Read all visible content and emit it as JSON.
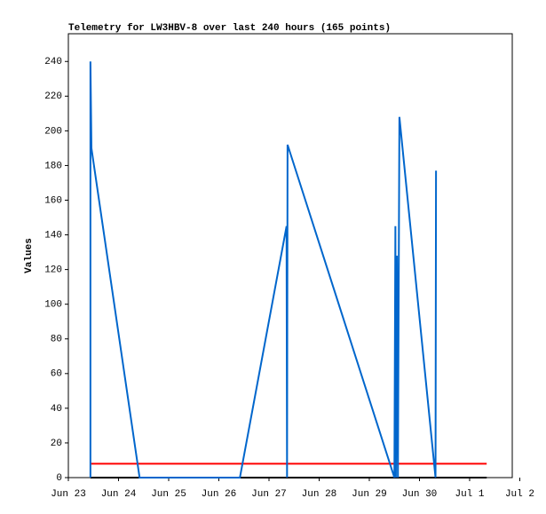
{
  "chart_data": {
    "type": "line",
    "title": "Telemetry for LW3HBV-8 over last 240 hours (165 points)",
    "y_label": "Values",
    "xlim": [
      0,
      8.85
    ],
    "xticks": [
      {
        "value": 0,
        "label": "Jun 23"
      },
      {
        "value": 1,
        "label": "Jun 24"
      },
      {
        "value": 2,
        "label": "Jun 25"
      },
      {
        "value": 3,
        "label": "Jun 26"
      },
      {
        "value": 4,
        "label": "Jun 27"
      },
      {
        "value": 5,
        "label": "Jun 28"
      },
      {
        "value": 6,
        "label": "Jun 29"
      },
      {
        "value": 7,
        "label": "Jun 30"
      },
      {
        "value": 8,
        "label": "Jul 1"
      },
      {
        "value": 9,
        "label": "Jul 2"
      }
    ],
    "ylim": [
      0,
      256
    ],
    "yticks": [
      0,
      20,
      40,
      60,
      80,
      100,
      120,
      140,
      160,
      180,
      200,
      220,
      240
    ],
    "series": [
      {
        "color": "#000000",
        "x": [
          0.44,
          8.34
        ],
        "values": [
          0,
          0
        ]
      },
      {
        "color": "#ff0000",
        "x": [
          0.44,
          8.34
        ],
        "values": [
          8,
          8
        ]
      },
      {
        "color": "#0066cc",
        "x": [
          0.44,
          0.44,
          0.46,
          1.42,
          3.42,
          4.35,
          4.36,
          4.37,
          6.5,
          6.52,
          6.53,
          6.55,
          6.57,
          6.6,
          7.32,
          7.33
        ],
        "values": [
          0,
          240,
          190,
          0,
          0,
          145,
          0,
          192,
          0,
          145,
          0,
          128,
          0,
          208,
          0,
          177
        ]
      }
    ]
  }
}
